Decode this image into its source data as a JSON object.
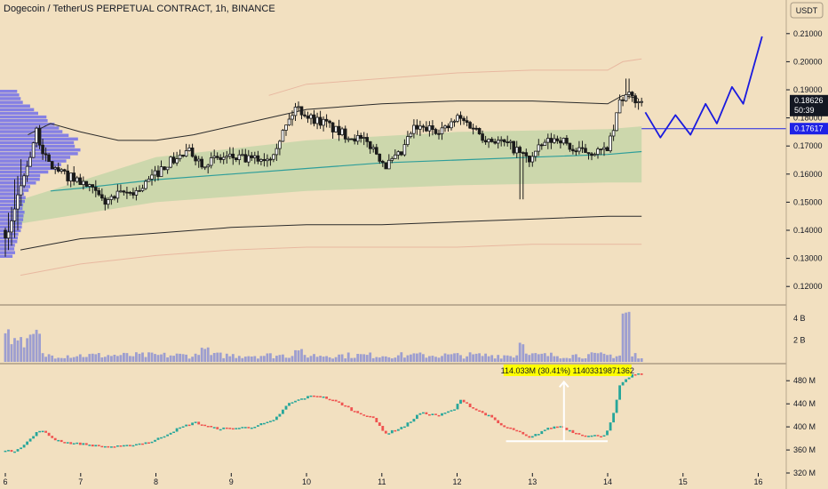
{
  "header": {
    "title": "Dogecoin / TetherUS PERPETUAL CONTRACT, 1h, BINANCE",
    "currency_button": "USDT"
  },
  "colors": {
    "background": "#f2e0c0",
    "candle_up": "#26a69a",
    "candle_down": "#ef5350",
    "band_fill": "#c6d5a8",
    "vwap_line": "#2e9e9a",
    "projection": "#1a1adf",
    "current_price_tag": "#131722",
    "level_tag": "#1e22e6",
    "volume_profile": "#6060f0",
    "volume_bars": "#9d9ed0",
    "annotation_bg": "#ffff00"
  },
  "chart_data": [
    {
      "type": "candlestick",
      "pane": "price",
      "symbol": "Dogecoin / TetherUS PERPETUAL CONTRACT",
      "interval": "1h",
      "exchange": "BINANCE",
      "x_ticks": [
        "6",
        "7",
        "8",
        "9",
        "10",
        "11",
        "12",
        "13",
        "14",
        "15",
        "16"
      ],
      "y_ticks": [
        "0.21000",
        "0.20000",
        "0.19000",
        "0.18000",
        "0.17000",
        "0.16000",
        "0.15000",
        "0.14000",
        "0.13000",
        "0.12000"
      ],
      "ylim": [
        0.115,
        0.215
      ],
      "xlim": [
        6.0,
        16.1
      ],
      "current_price": {
        "value": 0.18626,
        "label": "0.18626",
        "countdown": "50:39"
      },
      "level_line": {
        "value": 0.17617,
        "label": "0.17617"
      },
      "key_points": [
        {
          "x": 6.0,
          "y": 0.14
        },
        {
          "x": 6.05,
          "y": 0.137
        },
        {
          "x": 6.15,
          "y": 0.146
        },
        {
          "x": 6.3,
          "y": 0.16
        },
        {
          "x": 6.45,
          "y": 0.175
        },
        {
          "x": 6.6,
          "y": 0.164
        },
        {
          "x": 6.8,
          "y": 0.16
        },
        {
          "x": 7.0,
          "y": 0.158
        },
        {
          "x": 7.2,
          "y": 0.154
        },
        {
          "x": 7.35,
          "y": 0.15
        },
        {
          "x": 7.6,
          "y": 0.153
        },
        {
          "x": 7.8,
          "y": 0.154
        },
        {
          "x": 8.0,
          "y": 0.159
        },
        {
          "x": 8.2,
          "y": 0.164
        },
        {
          "x": 8.5,
          "y": 0.168
        },
        {
          "x": 8.65,
          "y": 0.164
        },
        {
          "x": 8.8,
          "y": 0.165
        },
        {
          "x": 9.0,
          "y": 0.166
        },
        {
          "x": 9.3,
          "y": 0.165
        },
        {
          "x": 9.55,
          "y": 0.166
        },
        {
          "x": 9.75,
          "y": 0.176
        },
        {
          "x": 9.9,
          "y": 0.184
        },
        {
          "x": 10.1,
          "y": 0.18
        },
        {
          "x": 10.3,
          "y": 0.178
        },
        {
          "x": 10.45,
          "y": 0.175
        },
        {
          "x": 10.7,
          "y": 0.173
        },
        {
          "x": 10.9,
          "y": 0.17
        },
        {
          "x": 11.1,
          "y": 0.163
        },
        {
          "x": 11.3,
          "y": 0.167
        },
        {
          "x": 11.45,
          "y": 0.176
        },
        {
          "x": 11.7,
          "y": 0.176
        },
        {
          "x": 11.9,
          "y": 0.176
        },
        {
          "x": 12.05,
          "y": 0.18
        },
        {
          "x": 12.25,
          "y": 0.177
        },
        {
          "x": 12.4,
          "y": 0.173
        },
        {
          "x": 12.55,
          "y": 0.172
        },
        {
          "x": 12.75,
          "y": 0.17
        },
        {
          "x": 12.9,
          "y": 0.167
        },
        {
          "x": 13.0,
          "y": 0.165
        },
        {
          "x": 13.2,
          "y": 0.171
        },
        {
          "x": 13.4,
          "y": 0.173
        },
        {
          "x": 13.6,
          "y": 0.168
        },
        {
          "x": 13.8,
          "y": 0.168
        },
        {
          "x": 14.0,
          "y": 0.168
        },
        {
          "x": 14.1,
          "y": 0.173
        },
        {
          "x": 14.2,
          "y": 0.186
        },
        {
          "x": 14.3,
          "y": 0.188
        },
        {
          "x": 14.45,
          "y": 0.186
        }
      ],
      "upper_band": [
        [
          6.3,
          0.174
        ],
        [
          6.6,
          0.178
        ],
        [
          7.0,
          0.175
        ],
        [
          7.5,
          0.172
        ],
        [
          8.0,
          0.172
        ],
        [
          8.5,
          0.174
        ],
        [
          9.0,
          0.177
        ],
        [
          9.5,
          0.18
        ],
        [
          10.0,
          0.183
        ],
        [
          11.0,
          0.185
        ],
        [
          12.0,
          0.186
        ],
        [
          13.0,
          0.186
        ],
        [
          14.0,
          0.185
        ],
        [
          14.2,
          0.188
        ],
        [
          14.4,
          0.187
        ]
      ],
      "lower_band": [
        [
          6.2,
          0.133
        ],
        [
          6.6,
          0.135
        ],
        [
          7.0,
          0.137
        ],
        [
          8.0,
          0.139
        ],
        [
          9.0,
          0.141
        ],
        [
          10.0,
          0.142
        ],
        [
          11.0,
          0.142
        ],
        [
          12.0,
          0.143
        ],
        [
          13.0,
          0.144
        ],
        [
          14.0,
          0.145
        ],
        [
          14.45,
          0.145
        ]
      ],
      "outer_upper_band": [
        [
          9.5,
          0.188
        ],
        [
          10.0,
          0.192
        ],
        [
          11.0,
          0.194
        ],
        [
          12.0,
          0.196
        ],
        [
          13.0,
          0.197
        ],
        [
          14.0,
          0.197
        ],
        [
          14.2,
          0.2
        ],
        [
          14.45,
          0.201
        ]
      ],
      "outer_lower_band": [
        [
          6.2,
          0.124
        ],
        [
          7.0,
          0.128
        ],
        [
          8.0,
          0.131
        ],
        [
          9.0,
          0.133
        ],
        [
          10.0,
          0.134
        ],
        [
          11.0,
          0.134
        ],
        [
          12.0,
          0.134
        ],
        [
          13.0,
          0.135
        ],
        [
          14.0,
          0.135
        ],
        [
          14.45,
          0.135
        ]
      ],
      "vwap": [
        [
          6.6,
          0.154
        ],
        [
          7.0,
          0.155
        ],
        [
          8.0,
          0.158
        ],
        [
          9.0,
          0.16
        ],
        [
          10.0,
          0.162
        ],
        [
          11.0,
          0.164
        ],
        [
          12.0,
          0.165
        ],
        [
          13.0,
          0.166
        ],
        [
          14.0,
          0.167
        ],
        [
          14.45,
          0.168
        ]
      ],
      "value_area": {
        "upper": [
          [
            6.1,
            0.15
          ],
          [
            8.0,
            0.166
          ],
          [
            10.0,
            0.172
          ],
          [
            12.0,
            0.175
          ],
          [
            14.0,
            0.176
          ],
          [
            14.45,
            0.177
          ]
        ],
        "lower": [
          [
            6.1,
            0.142
          ],
          [
            8.0,
            0.15
          ],
          [
            10.0,
            0.154
          ],
          [
            12.0,
            0.156
          ],
          [
            14.0,
            0.157
          ],
          [
            14.45,
            0.157
          ]
        ]
      },
      "projection": [
        [
          14.5,
          0.182
        ],
        [
          14.7,
          0.173
        ],
        [
          14.9,
          0.181
        ],
        [
          15.1,
          0.174
        ],
        [
          15.3,
          0.185
        ],
        [
          15.45,
          0.178
        ],
        [
          15.65,
          0.191
        ],
        [
          15.8,
          0.185
        ],
        [
          16.05,
          0.209
        ]
      ],
      "volume_profile": {
        "y_range": [
          0.13,
          0.19
        ],
        "peak_price": 0.17
      }
    },
    {
      "type": "bar",
      "pane": "volume",
      "y_ticks": [
        "4 B",
        "2 B"
      ],
      "ylim": [
        0,
        5
      ],
      "unit": "B",
      "spikes": [
        {
          "x": 6.0,
          "value": 3.0
        },
        {
          "x": 8.65,
          "value": 1.4
        },
        {
          "x": 9.9,
          "value": 1.2
        },
        {
          "x": 11.45,
          "value": 0.8
        },
        {
          "x": 12.85,
          "value": 1.9
        },
        {
          "x": 14.25,
          "value": 4.8
        }
      ],
      "baseline_value": 0.6
    },
    {
      "type": "candlestick",
      "pane": "indicator",
      "y_ticks": [
        "480 M",
        "440 M",
        "400 M",
        "360 M",
        "320 M"
      ],
      "ylim": [
        320,
        505
      ],
      "unit": "M",
      "key_points": [
        {
          "x": 6.0,
          "y": 358
        },
        {
          "x": 6.15,
          "y": 358
        },
        {
          "x": 6.3,
          "y": 370
        },
        {
          "x": 6.5,
          "y": 395
        },
        {
          "x": 6.7,
          "y": 378
        },
        {
          "x": 6.9,
          "y": 372
        },
        {
          "x": 7.1,
          "y": 370
        },
        {
          "x": 7.3,
          "y": 366
        },
        {
          "x": 7.6,
          "y": 366
        },
        {
          "x": 8.0,
          "y": 375
        },
        {
          "x": 8.3,
          "y": 395
        },
        {
          "x": 8.55,
          "y": 408
        },
        {
          "x": 8.8,
          "y": 398
        },
        {
          "x": 9.0,
          "y": 397
        },
        {
          "x": 9.3,
          "y": 400
        },
        {
          "x": 9.6,
          "y": 410
        },
        {
          "x": 9.8,
          "y": 440
        },
        {
          "x": 10.0,
          "y": 450
        },
        {
          "x": 10.15,
          "y": 455
        },
        {
          "x": 10.3,
          "y": 450
        },
        {
          "x": 10.5,
          "y": 440
        },
        {
          "x": 10.7,
          "y": 425
        },
        {
          "x": 10.9,
          "y": 418
        },
        {
          "x": 11.1,
          "y": 388
        },
        {
          "x": 11.35,
          "y": 402
        },
        {
          "x": 11.55,
          "y": 424
        },
        {
          "x": 11.8,
          "y": 420
        },
        {
          "x": 12.0,
          "y": 430
        },
        {
          "x": 12.1,
          "y": 448
        },
        {
          "x": 12.25,
          "y": 432
        },
        {
          "x": 12.45,
          "y": 420
        },
        {
          "x": 12.65,
          "y": 400
        },
        {
          "x": 12.8,
          "y": 395
        },
        {
          "x": 13.0,
          "y": 380
        },
        {
          "x": 13.2,
          "y": 395
        },
        {
          "x": 13.4,
          "y": 402
        },
        {
          "x": 13.6,
          "y": 390
        },
        {
          "x": 13.8,
          "y": 384
        },
        {
          "x": 14.0,
          "y": 386
        },
        {
          "x": 14.1,
          "y": 412
        },
        {
          "x": 14.2,
          "y": 470
        },
        {
          "x": 14.35,
          "y": 490
        },
        {
          "x": 14.5,
          "y": 491
        }
      ],
      "annotation": {
        "label": "114.033M (30.41%) 11403319871362",
        "from": {
          "x": 12.65,
          "y": 375
        },
        "to": {
          "x": 14.0,
          "y": 489
        }
      }
    }
  ]
}
